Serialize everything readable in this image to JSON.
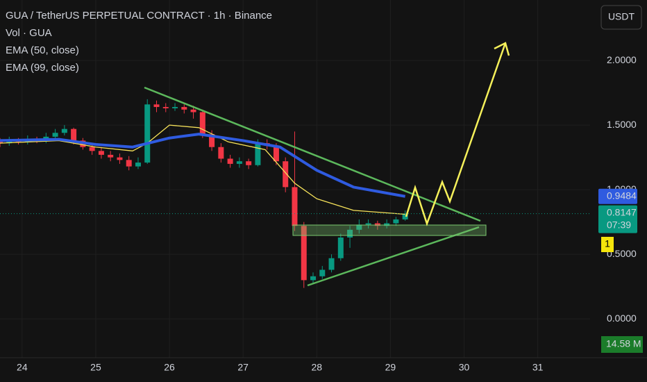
{
  "chart_data": {
    "type": "candlestick",
    "title": "GUA / TetherUS PERPETUAL CONTRACT · 1h · Binance",
    "volume_label": "Vol · GUA",
    "currency": "USDT",
    "countdown": "07:39",
    "alert_count": "1",
    "volume_value_label": "14.58 M",
    "up_color": "#089981",
    "down_color": "#f23645",
    "grid": true,
    "xlim": [
      23.7,
      31.71
    ],
    "ylim": [
      -0.3,
      2.468
    ],
    "xticks": [
      24,
      25,
      26,
      27,
      28,
      29,
      30,
      31
    ],
    "yticks": [
      {
        "value": 0,
        "label": "0.0000"
      },
      {
        "value": 0.5,
        "label": "0.5000"
      },
      {
        "value": 1,
        "label": "1.0000"
      },
      {
        "value": 1.5,
        "label": "1.5000"
      },
      {
        "value": 2,
        "label": "2.0000"
      }
    ],
    "x": [
      23.7,
      23.825,
      23.95,
      24.075,
      24.2,
      24.325,
      24.45,
      24.575,
      24.7,
      24.825,
      24.95,
      25.075,
      25.2,
      25.325,
      25.45,
      25.575,
      25.7,
      25.825,
      25.95,
      26.075,
      26.2,
      26.325,
      26.45,
      26.575,
      26.7,
      26.825,
      26.95,
      27.075,
      27.2,
      27.325,
      27.45,
      27.575,
      27.7,
      27.825,
      27.95,
      28.075,
      28.2,
      28.325,
      28.45,
      28.575,
      28.7,
      28.825,
      28.95,
      29.075,
      29.2
    ],
    "open": [
      1.37,
      1.36,
      1.38,
      1.37,
      1.39,
      1.38,
      1.41,
      1.44,
      1.47,
      1.38,
      1.33,
      1.3,
      1.27,
      1.25,
      1.23,
      1.18,
      1.21,
      1.66,
      1.64,
      1.63,
      1.64,
      1.62,
      1.6,
      1.43,
      1.33,
      1.24,
      1.2,
      1.22,
      1.19,
      1.36,
      1.34,
      1.22,
      1.02,
      0.72,
      0.3,
      0.33,
      0.38,
      0.47,
      0.63,
      0.69,
      0.73,
      0.74,
      0.72,
      0.74,
      0.77
    ],
    "high": [
      1.4,
      1.41,
      1.4,
      1.42,
      1.41,
      1.44,
      1.47,
      1.5,
      1.48,
      1.4,
      1.35,
      1.33,
      1.3,
      1.28,
      1.26,
      1.25,
      1.7,
      1.69,
      1.67,
      1.67,
      1.66,
      1.65,
      1.62,
      1.46,
      1.36,
      1.27,
      1.25,
      1.24,
      1.39,
      1.39,
      1.36,
      1.25,
      1.45,
      0.75,
      0.36,
      0.41,
      0.5,
      0.66,
      0.72,
      0.77,
      0.77,
      0.76,
      0.77,
      0.79,
      0.84
    ],
    "low": [
      1.33,
      1.34,
      1.35,
      1.35,
      1.36,
      1.36,
      1.39,
      1.42,
      1.35,
      1.31,
      1.27,
      1.24,
      1.22,
      1.2,
      1.15,
      1.16,
      1.2,
      1.6,
      1.6,
      1.61,
      1.59,
      1.55,
      1.4,
      1.3,
      1.21,
      1.17,
      1.17,
      1.16,
      1.18,
      1.31,
      1.19,
      0.98,
      0.68,
      0.24,
      0.27,
      0.31,
      0.36,
      0.45,
      0.55,
      0.66,
      0.7,
      0.69,
      0.7,
      0.72,
      0.76
    ],
    "close": [
      1.36,
      1.38,
      1.37,
      1.39,
      1.38,
      1.41,
      1.44,
      1.47,
      1.38,
      1.33,
      1.3,
      1.27,
      1.25,
      1.23,
      1.18,
      1.21,
      1.66,
      1.64,
      1.63,
      1.64,
      1.62,
      1.6,
      1.43,
      1.33,
      1.24,
      1.2,
      1.22,
      1.19,
      1.36,
      1.34,
      1.22,
      1.02,
      0.72,
      0.3,
      0.33,
      0.38,
      0.47,
      0.63,
      0.69,
      0.73,
      0.74,
      0.72,
      0.74,
      0.77,
      0.8147
    ],
    "series": [
      {
        "name": "EMA (50, close)",
        "color": "#f7e35a",
        "width": 1.3,
        "x": [
          23.7,
          24.5,
          25.0,
          25.5,
          25.7,
          26.0,
          26.4,
          26.8,
          27.3,
          27.7,
          28.0,
          28.5,
          29.2
        ],
        "values": [
          1.36,
          1.38,
          1.33,
          1.3,
          1.36,
          1.5,
          1.48,
          1.37,
          1.31,
          1.05,
          0.93,
          0.84,
          0.81
        ]
      },
      {
        "name": "EMA (99, close)",
        "color": "#2f5be0",
        "width": 4,
        "x": [
          23.7,
          24.5,
          25.0,
          25.5,
          26.0,
          26.4,
          27.0,
          27.5,
          28.0,
          28.5,
          29.2
        ],
        "values": [
          1.38,
          1.39,
          1.35,
          1.33,
          1.4,
          1.43,
          1.38,
          1.33,
          1.15,
          1.02,
          0.9484
        ]
      }
    ]
  }
}
